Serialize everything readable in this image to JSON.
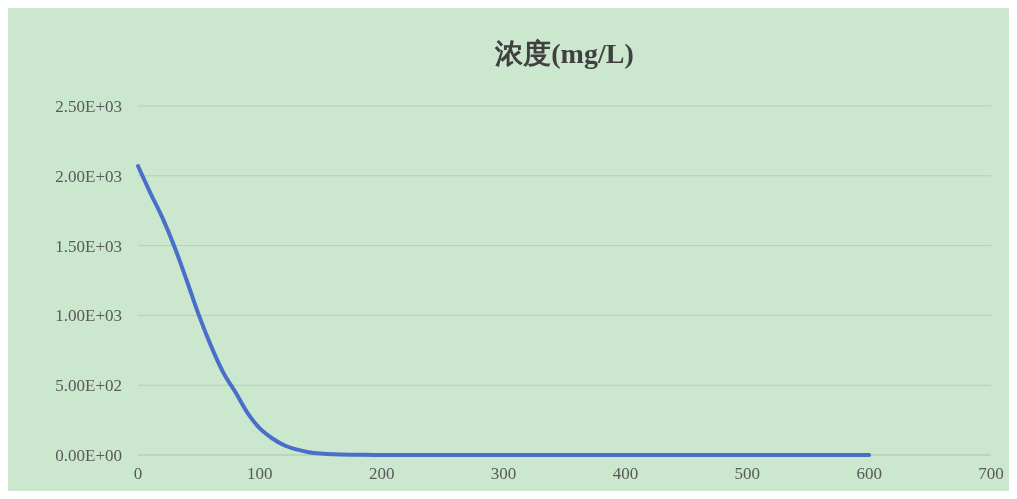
{
  "chart_data": {
    "type": "line",
    "title": "浓度(mg/L)",
    "x": [
      0,
      10,
      20,
      30,
      40,
      50,
      60,
      70,
      80,
      90,
      100,
      110,
      120,
      130,
      140,
      150,
      160,
      180,
      200,
      300,
      400,
      500,
      600
    ],
    "series": [
      {
        "color": "#4a6fc9",
        "values": [
          2070,
          1880,
          1700,
          1490,
          1250,
          1000,
          780,
          590,
          450,
          300,
          190,
          120,
          70,
          40,
          20,
          10,
          5,
          2,
          0,
          0,
          0,
          0,
          0
        ]
      }
    ],
    "xlim": [
      0,
      700
    ],
    "xticks": [
      0,
      100,
      200,
      300,
      400,
      500,
      600,
      700
    ],
    "ylim": [
      0,
      2500
    ],
    "yticks": [
      {
        "value": 0,
        "label": "0.00E+00"
      },
      {
        "value": 500,
        "label": "5.00E+02"
      },
      {
        "value": 1000,
        "label": "1.00E+03"
      },
      {
        "value": 1500,
        "label": "1.50E+03"
      },
      {
        "value": 2000,
        "label": "2.00E+03"
      },
      {
        "value": 2500,
        "label": "2.50E+03"
      }
    ],
    "grid": "y",
    "marker": "none",
    "line_style": "solid"
  }
}
